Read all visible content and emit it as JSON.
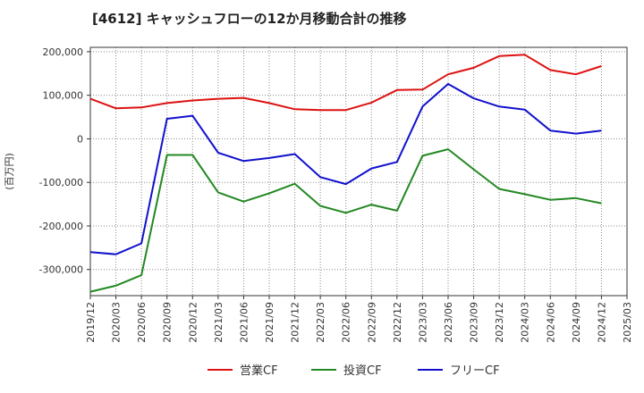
{
  "chart_data": {
    "type": "line",
    "title": "[4612]  キャッシュフローの12か月移動合計の推移",
    "ylabel": "(百万円)",
    "xlabel": "",
    "ylim": [
      -360000,
      210000
    ],
    "grid": true,
    "legend_position": "bottom",
    "categories": [
      "2019/12",
      "2020/03",
      "2020/06",
      "2020/09",
      "2020/12",
      "2021/03",
      "2021/06",
      "2021/09",
      "2021/12",
      "2022/03",
      "2022/06",
      "2022/09",
      "2022/12",
      "2023/03",
      "2023/06",
      "2023/09",
      "2023/12",
      "2024/03",
      "2024/06",
      "2024/09",
      "2024/12",
      "2025/03"
    ],
    "y_ticks": [
      {
        "value": 200000,
        "label": "200,000"
      },
      {
        "value": 100000,
        "label": "100,000"
      },
      {
        "value": 0,
        "label": "0"
      },
      {
        "value": -100000,
        "label": "-100,000"
      },
      {
        "value": -200000,
        "label": "-200,000"
      },
      {
        "value": -300000,
        "label": "-300,000"
      }
    ],
    "series": [
      {
        "name": "営業CF",
        "color": "#dd1111",
        "values": [
          92000,
          70000,
          72000,
          82000,
          88000,
          92000,
          94000,
          82000,
          68000,
          66000,
          66000,
          83000,
          112000,
          113000,
          148000,
          163000,
          190000,
          193000,
          158000,
          148000,
          167000,
          null
        ]
      },
      {
        "name": "投資CF",
        "color": "#228822",
        "values": [
          -351000,
          -337000,
          -313000,
          -37000,
          -37000,
          -123000,
          -144000,
          -125000,
          -103000,
          -154000,
          -170000,
          -151000,
          -165000,
          -39000,
          -24000,
          -70000,
          -115000,
          -127000,
          -140000,
          -136000,
          -148000,
          null
        ]
      },
      {
        "name": "フリーCF",
        "color": "#1111cc",
        "values": [
          -260000,
          -265000,
          -240000,
          46000,
          53000,
          -32000,
          -51000,
          -44000,
          -35000,
          -88000,
          -104000,
          -68000,
          -53000,
          74000,
          126000,
          93000,
          74000,
          67000,
          19000,
          12000,
          19000,
          null
        ]
      }
    ]
  }
}
